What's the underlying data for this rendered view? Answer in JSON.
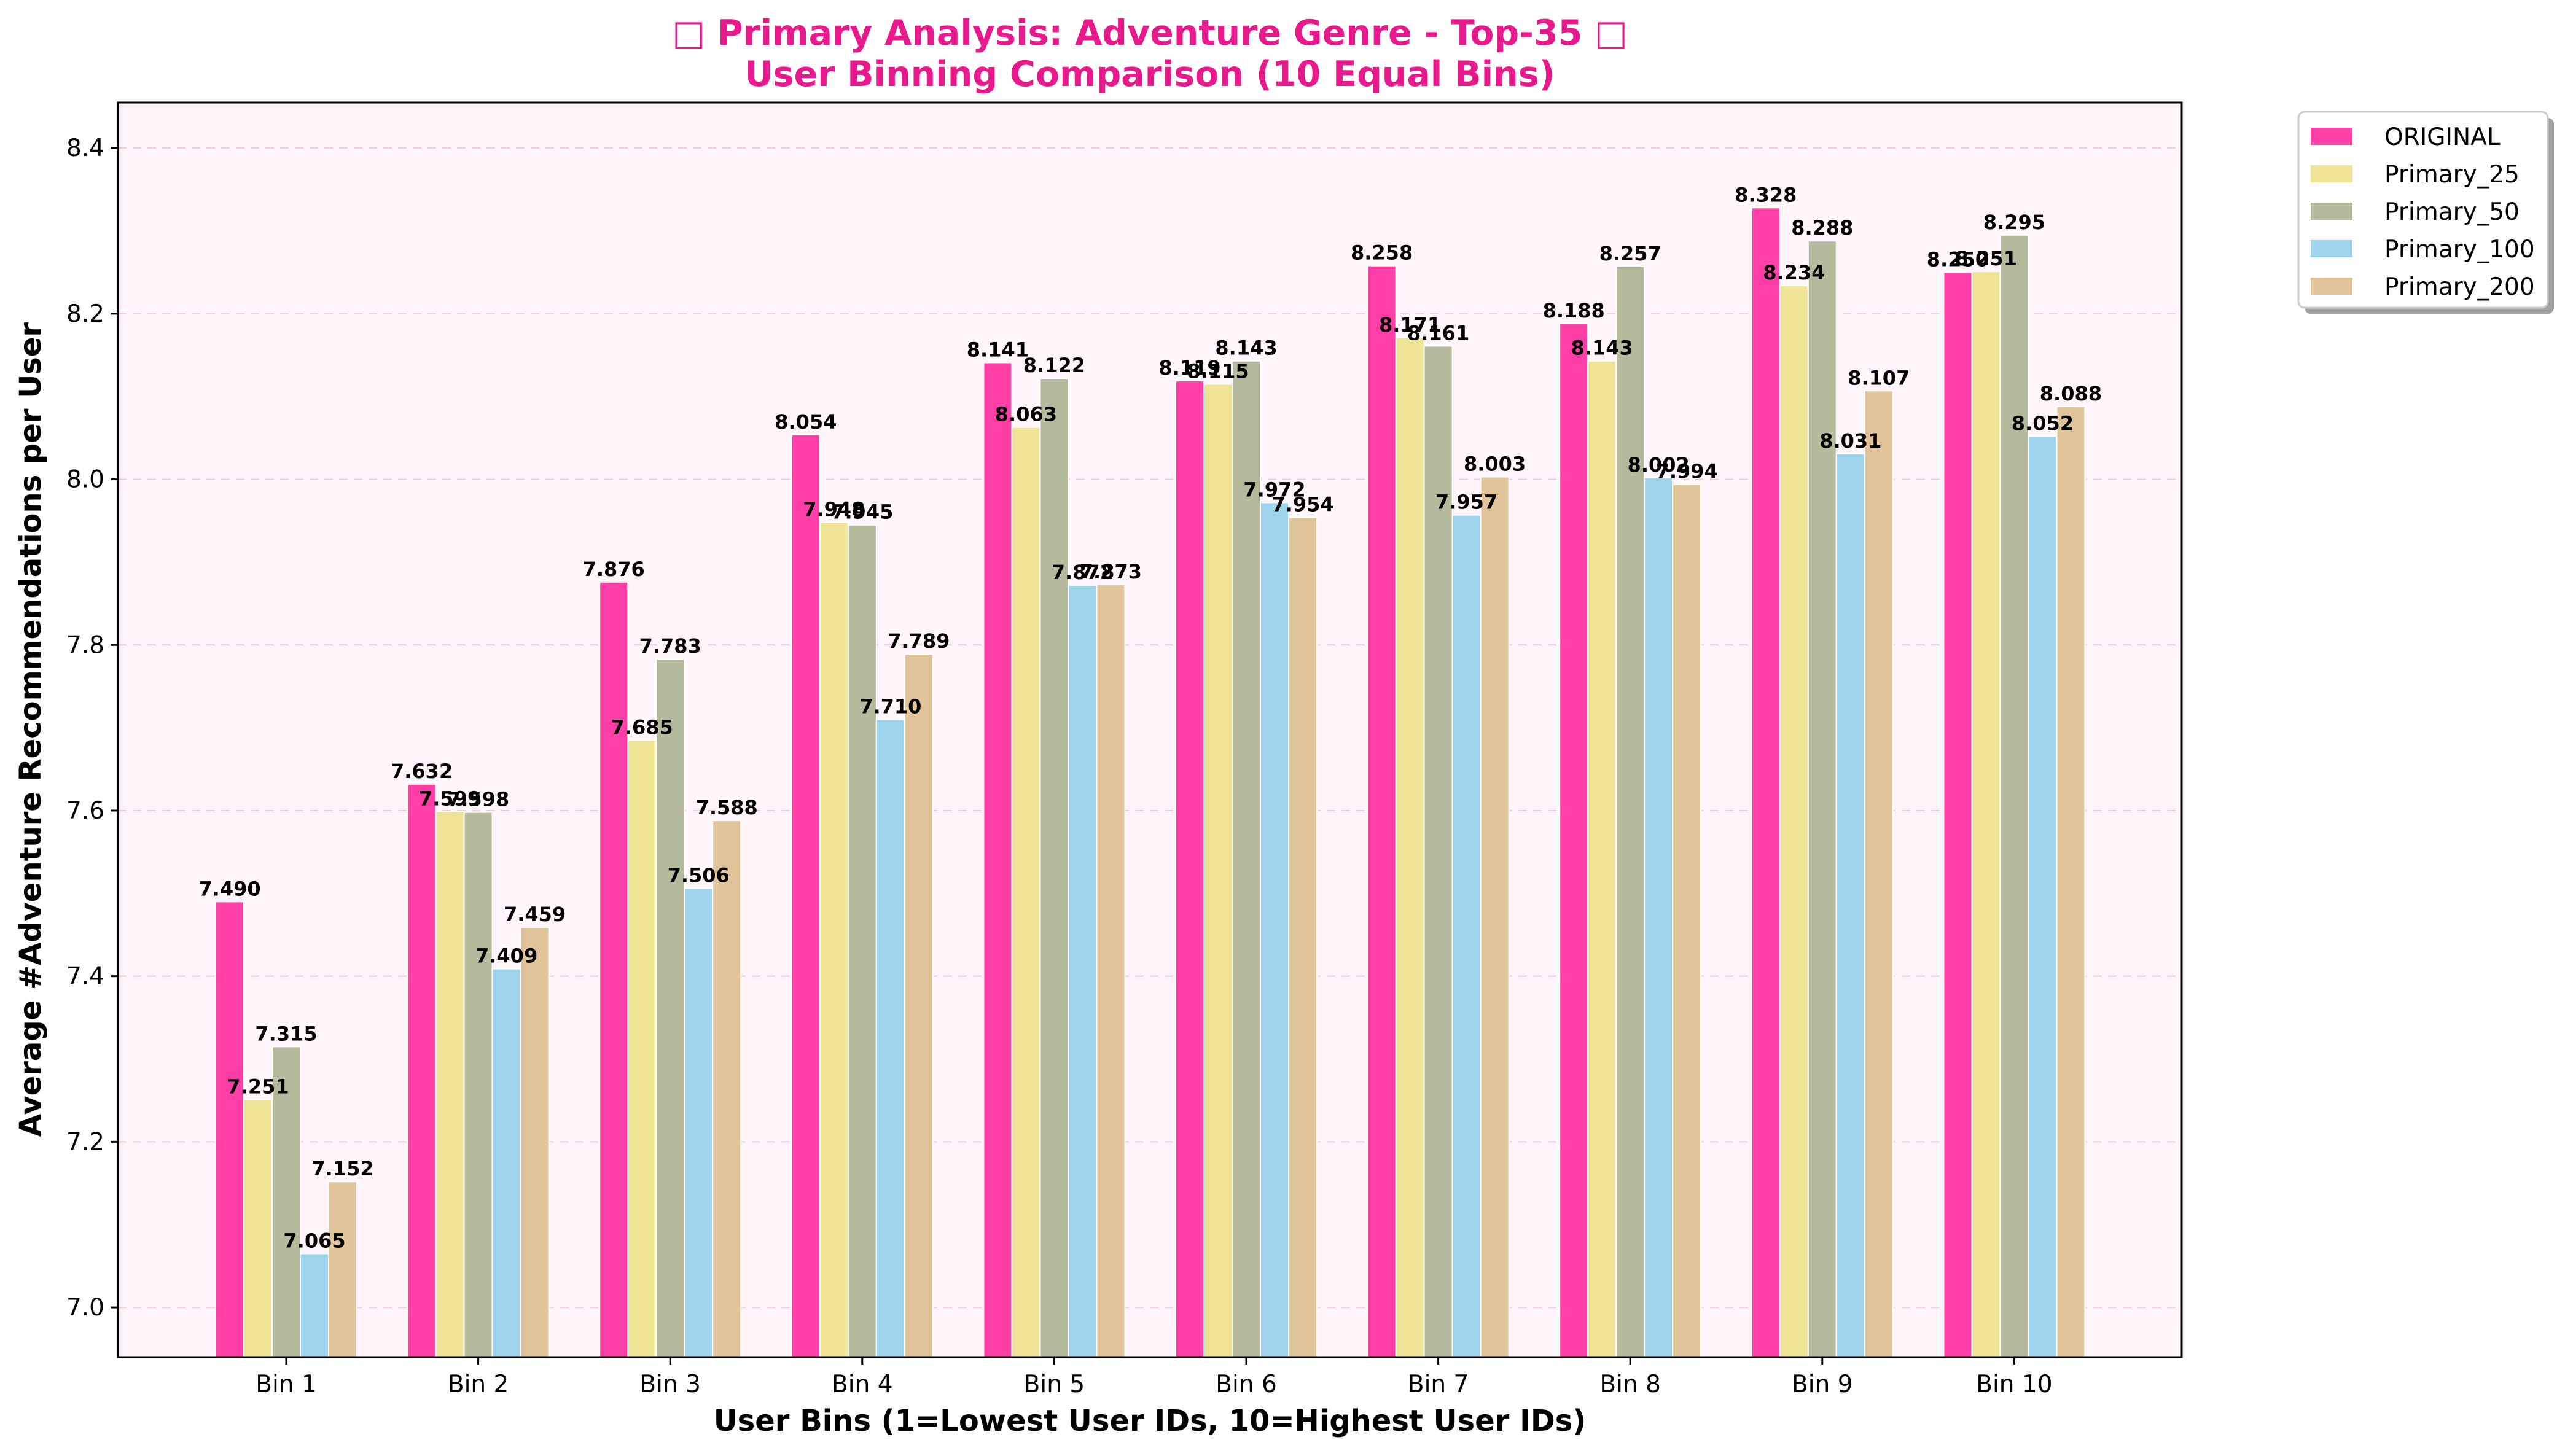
{
  "chart_data": {
    "type": "bar",
    "title_line1": "□ Primary Analysis: Adventure Genre - Top-35 □",
    "title_line2": "User Binning Comparison (10 Equal Bins)",
    "xlabel": "User Bins (1=Lowest User IDs, 10=Highest User IDs)",
    "ylabel": "Average #Adventure Recommendations per User",
    "ylim": [
      6.94,
      8.455
    ],
    "yticks": [
      7.0,
      7.2,
      7.4,
      7.6,
      7.8,
      8.0,
      8.2,
      8.4
    ],
    "grid": "horizontal dashed",
    "legend_position": "outside top-right",
    "categories": [
      "Bin 1",
      "Bin 2",
      "Bin 3",
      "Bin 4",
      "Bin 5",
      "Bin 6",
      "Bin 7",
      "Bin 8",
      "Bin 9",
      "Bin 10"
    ],
    "series": [
      {
        "name": "ORIGINAL",
        "color": "#ff3fa7",
        "values": [
          7.49,
          7.632,
          7.876,
          8.054,
          8.141,
          8.119,
          8.258,
          8.188,
          8.328,
          8.25
        ],
        "labels": [
          "7.490",
          "7.632",
          "7.876",
          "8.054",
          "8.141",
          "8.119",
          "8.258",
          "8.188",
          "8.328",
          "8.250"
        ]
      },
      {
        "name": "Primary_25",
        "color": "#efe496",
        "values": [
          7.251,
          7.599,
          7.685,
          7.948,
          8.063,
          8.115,
          8.171,
          8.143,
          8.234,
          8.251
        ],
        "labels": [
          "7.251",
          "7.599",
          "7.685",
          "7.948",
          "8.063",
          "8.115",
          "8.171",
          "8.143",
          "8.234",
          "8.251"
        ]
      },
      {
        "name": "Primary_50",
        "color": "#b6ba9c",
        "values": [
          7.315,
          7.598,
          7.783,
          7.945,
          8.122,
          8.143,
          8.161,
          8.257,
          8.288,
          8.295
        ],
        "labels": [
          "7.315",
          "7.598",
          "7.783",
          "7.945",
          "8.122",
          "8.143",
          "8.161",
          "8.257",
          "8.288",
          "8.295"
        ]
      },
      {
        "name": "Primary_100",
        "color": "#9dd3ec",
        "values": [
          7.065,
          7.409,
          7.506,
          7.71,
          7.872,
          7.972,
          7.957,
          8.002,
          8.031,
          8.052
        ],
        "labels": [
          "7.065",
          "7.409",
          "7.506",
          "7.710",
          "7.872",
          "7.972",
          "7.957",
          "8.002",
          "8.031",
          "8.052"
        ]
      },
      {
        "name": "Primary_200",
        "color": "#e2c49b",
        "values": [
          7.152,
          7.459,
          7.588,
          7.789,
          7.873,
          7.954,
          8.003,
          7.994,
          8.107,
          8.088
        ],
        "labels": [
          "7.152",
          "7.459",
          "7.588",
          "7.789",
          "7.873",
          "7.954",
          "8.003",
          "7.994",
          "8.107",
          "8.088"
        ]
      }
    ]
  },
  "colors": {
    "title": "#e8198c",
    "plot_background": "#fff5fb",
    "grid": "#f5c6dc"
  }
}
